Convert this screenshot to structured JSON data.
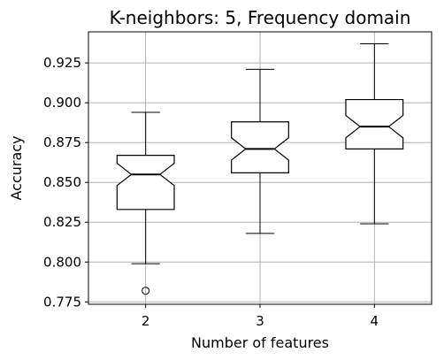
{
  "chart_data": {
    "type": "box",
    "title": "K-neighbors: 5, Frequency domain",
    "xlabel": "Number of features",
    "ylabel": "Accuracy",
    "categories": [
      "2",
      "3",
      "4"
    ],
    "ylim": [
      0.7735,
      0.9445
    ],
    "yticks": [
      "0.775",
      "0.800",
      "0.825",
      "0.850",
      "0.875",
      "0.900",
      "0.925"
    ],
    "grid": true,
    "notched": true,
    "boxes": [
      {
        "label": "2",
        "whisker_low": 0.799,
        "q1": 0.833,
        "median": 0.855,
        "q3": 0.867,
        "whisker_high": 0.894,
        "notch_low": 0.848,
        "notch_high": 0.862,
        "outliers": [
          0.782
        ]
      },
      {
        "label": "3",
        "whisker_low": 0.818,
        "q1": 0.856,
        "median": 0.871,
        "q3": 0.888,
        "whisker_high": 0.921,
        "notch_low": 0.864,
        "notch_high": 0.878,
        "outliers": []
      },
      {
        "label": "4",
        "whisker_low": 0.824,
        "q1": 0.871,
        "median": 0.885,
        "q3": 0.902,
        "whisker_high": 0.937,
        "notch_low": 0.878,
        "notch_high": 0.892,
        "outliers": []
      }
    ],
    "colors": {
      "box": "#000000",
      "median": "#000000",
      "grid": "#b0b0b0",
      "background": "#ffffff"
    }
  }
}
